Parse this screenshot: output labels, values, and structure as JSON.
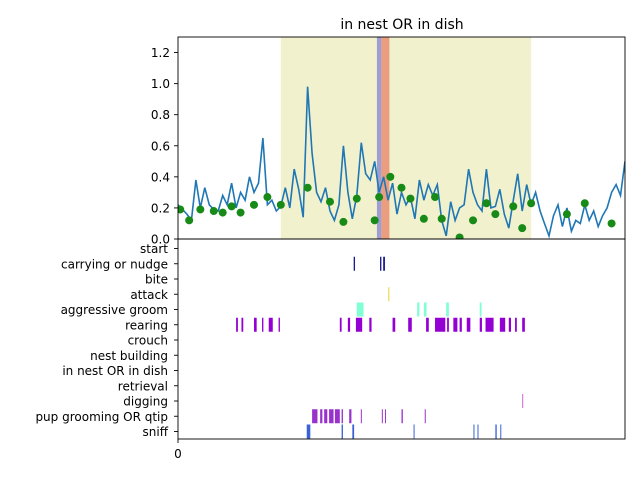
{
  "chart_data": [
    {
      "type": "line",
      "title": "in nest OR in dish",
      "xlabel": "",
      "ylabel": "",
      "ylim": [
        0,
        1.3
      ],
      "yticks": [
        0.0,
        0.2,
        0.4,
        0.6,
        0.8,
        1.0,
        1.2
      ],
      "ytick_labels": [
        "0.0",
        "0.2",
        "0.4",
        "0.6",
        "0.8",
        "1.0",
        "1.2"
      ],
      "xlim": [
        0,
        100
      ],
      "grid": false,
      "line_color": "#1f77b4",
      "x": [
        0,
        1,
        2,
        3,
        4,
        5,
        6,
        7,
        8,
        9,
        10,
        11,
        12,
        13,
        14,
        15,
        16,
        17,
        18,
        19,
        20,
        21,
        22,
        23,
        24,
        25,
        26,
        27,
        28,
        29,
        30,
        31,
        32,
        33,
        34,
        35,
        36,
        37,
        38,
        39,
        40,
        41,
        42,
        43,
        44,
        45,
        46,
        47,
        48,
        49,
        50,
        51,
        52,
        53,
        54,
        55,
        56,
        57,
        58,
        59,
        60,
        61,
        62,
        63,
        64,
        65,
        66,
        67,
        68,
        69,
        70,
        71,
        72,
        73,
        74,
        75,
        76,
        77,
        78,
        79,
        80,
        81,
        82,
        83,
        84,
        85,
        86,
        87,
        88,
        89,
        90,
        91,
        92,
        93,
        94,
        95,
        96,
        97,
        98,
        99,
        100
      ],
      "y": [
        0.22,
        0.19,
        0.16,
        0.12,
        0.38,
        0.2,
        0.33,
        0.22,
        0.19,
        0.18,
        0.28,
        0.22,
        0.36,
        0.2,
        0.3,
        0.25,
        0.4,
        0.3,
        0.36,
        0.65,
        0.22,
        0.25,
        0.18,
        0.21,
        0.33,
        0.2,
        0.45,
        0.32,
        0.14,
        0.98,
        0.55,
        0.3,
        0.24,
        0.33,
        0.18,
        0.12,
        0.22,
        0.6,
        0.3,
        0.13,
        0.28,
        0.62,
        0.42,
        0.38,
        0.5,
        0.3,
        0.4,
        0.25,
        0.36,
        0.16,
        0.3,
        0.22,
        0.27,
        0.13,
        0.38,
        0.25,
        0.35,
        0.28,
        0.35,
        0.12,
        0.02,
        0.24,
        0.12,
        0.2,
        0.22,
        0.45,
        0.3,
        0.22,
        0.18,
        0.45,
        0.2,
        0.21,
        0.32,
        0.16,
        0.07,
        0.25,
        0.42,
        0.18,
        0.35,
        0.22,
        0.3,
        0.18,
        0.1,
        0.02,
        0.15,
        0.22,
        0.08,
        0.2,
        0.05,
        0.12,
        0.1,
        0.22,
        0.12,
        0.18,
        0.08,
        0.15,
        0.2,
        0.3,
        0.35,
        0.28,
        0.5
      ],
      "markers": {
        "color": "#178a17",
        "x": [
          0.5,
          2.5,
          5,
          8,
          10,
          12,
          14,
          17,
          20,
          23,
          29,
          34,
          37,
          40,
          44,
          45,
          47.5,
          50,
          52,
          55,
          57.5,
          59,
          63,
          66,
          69,
          71,
          75,
          77,
          79,
          87,
          91,
          97
        ],
        "y": [
          0.19,
          0.12,
          0.19,
          0.18,
          0.17,
          0.21,
          0.17,
          0.22,
          0.27,
          0.22,
          0.33,
          0.24,
          0.11,
          0.26,
          0.12,
          0.27,
          0.4,
          0.33,
          0.26,
          0.13,
          0.27,
          0.13,
          0.01,
          0.12,
          0.23,
          0.16,
          0.21,
          0.07,
          0.23,
          0.16,
          0.23,
          0.1
        ]
      },
      "spans": [
        {
          "x0": 23,
          "x1": 79,
          "color": "#e8e6a6",
          "opacity": 0.55
        },
        {
          "x0": 44.5,
          "x1": 45.5,
          "color": "#9e9ed4",
          "opacity": 1
        },
        {
          "x0": 45.5,
          "x1": 47.3,
          "color": "#eb9d80",
          "opacity": 1
        }
      ]
    },
    {
      "type": "event-raster",
      "xlim": [
        0,
        100
      ],
      "xticks": [
        0
      ],
      "xtick_labels": [
        "0"
      ],
      "categories": [
        "start",
        "carrying or nudge",
        "bite",
        "attack",
        "aggressive groom",
        "rearing",
        "crouch",
        "nest building",
        "in nest OR in dish",
        "retrieval",
        "digging",
        "pup grooming OR qtip",
        "sniff"
      ],
      "series": [
        {
          "category": "start",
          "color": "#000000",
          "events": []
        },
        {
          "category": "carrying or nudge",
          "color": "#1a1a8c",
          "events": [
            [
              39.3,
              39.6
            ],
            [
              45.2,
              45.5
            ],
            [
              45.9,
              46.3
            ]
          ]
        },
        {
          "category": "bite",
          "color": "#000000",
          "events": []
        },
        {
          "category": "attack",
          "color": "#eedd66",
          "events": [
            [
              47.0,
              47.3
            ]
          ]
        },
        {
          "category": "aggressive groom",
          "color": "#7fffd4",
          "events": [
            [
              40.0,
              41.5
            ],
            [
              53.5,
              54.0
            ],
            [
              55.0,
              55.6
            ],
            [
              60.0,
              60.6
            ],
            [
              67.5,
              67.9
            ]
          ]
        },
        {
          "category": "rearing",
          "color": "#9400d3",
          "events": [
            [
              13.0,
              13.4
            ],
            [
              14.2,
              14.6
            ],
            [
              17.0,
              17.6
            ],
            [
              18.8,
              19.1
            ],
            [
              20.3,
              21.2
            ],
            [
              22.5,
              22.8
            ],
            [
              36.2,
              36.6
            ],
            [
              38.0,
              38.5
            ],
            [
              39.8,
              41.2
            ],
            [
              42.8,
              43.3
            ],
            [
              48.0,
              48.6
            ],
            [
              51.5,
              52.3
            ],
            [
              55.5,
              56.1
            ],
            [
              57.5,
              59.8
            ],
            [
              60.2,
              60.6
            ],
            [
              61.6,
              62.5
            ],
            [
              63.0,
              63.5
            ],
            [
              64.6,
              65.4
            ],
            [
              67.5,
              68.0
            ],
            [
              68.8,
              70.6
            ],
            [
              72.0,
              73.2
            ],
            [
              74.0,
              74.5
            ],
            [
              75.4,
              75.8
            ],
            [
              77.0,
              77.6
            ]
          ]
        },
        {
          "category": "crouch",
          "color": "#000000",
          "events": []
        },
        {
          "category": "nest building",
          "color": "#000000",
          "events": []
        },
        {
          "category": "in nest OR in dish",
          "color": "#000000",
          "events": []
        },
        {
          "category": "retrieval",
          "color": "#000000",
          "events": []
        },
        {
          "category": "digging",
          "color": "#cc66cc",
          "events": [
            [
              77.0,
              77.2
            ]
          ]
        },
        {
          "category": "pup grooming OR qtip",
          "color": "#9932cc",
          "events": [
            [
              30.0,
              31.2
            ],
            [
              31.8,
              32.3
            ],
            [
              32.7,
              33.4
            ],
            [
              33.8,
              34.8
            ],
            [
              35.1,
              36.2
            ],
            [
              36.6,
              36.9
            ],
            [
              38.3,
              38.8
            ],
            [
              40.9,
              41.1
            ],
            [
              45.6,
              45.8
            ],
            [
              46.3,
              46.5
            ],
            [
              50.0,
              50.3
            ],
            [
              55.2,
              55.4
            ]
          ]
        },
        {
          "category": "sniff",
          "color": "#3a62d8",
          "events": [
            [
              28.8,
              29.6
            ],
            [
              36.6,
              36.9
            ],
            [
              39.0,
              39.4
            ],
            [
              52.7,
              52.9
            ],
            [
              66.1,
              66.3
            ],
            [
              67.0,
              67.2
            ],
            [
              71.0,
              71.3
            ],
            [
              72.1,
              72.3
            ]
          ]
        }
      ]
    }
  ]
}
